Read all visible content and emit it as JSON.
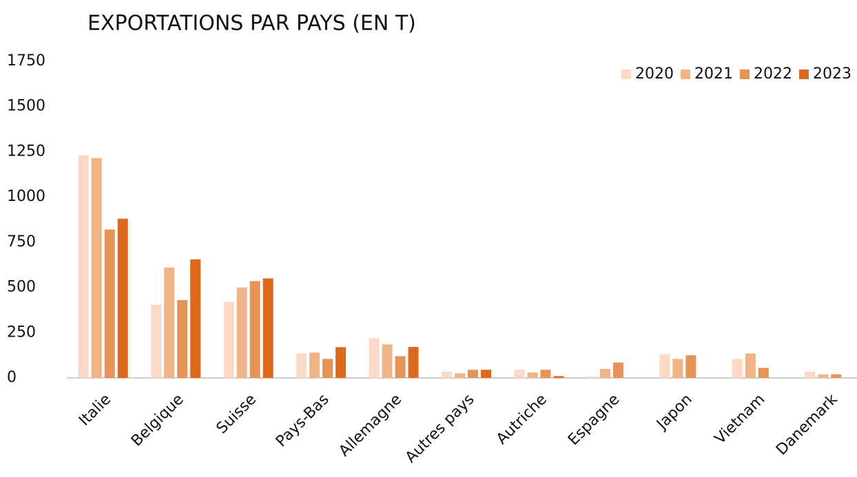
{
  "chart_data": {
    "type": "bar",
    "title": "EXPORTATIONS PAR PAYS (EN T)",
    "categories": [
      "Italie",
      "Belgique",
      "Suisse",
      "Pays-Bas",
      "Allemagne",
      "Autres pays",
      "Autriche",
      "Espagne",
      "Japon",
      "Vietnam",
      "Danemark"
    ],
    "series": [
      {
        "name": "2020",
        "color": "#fbd9c6",
        "values": [
          1230,
          405,
          420,
          135,
          220,
          35,
          45,
          8,
          130,
          105,
          35
        ]
      },
      {
        "name": "2021",
        "color": "#f0b388",
        "values": [
          1215,
          610,
          500,
          140,
          185,
          25,
          30,
          50,
          105,
          135,
          20
        ]
      },
      {
        "name": "2022",
        "color": "#e69358",
        "values": [
          820,
          430,
          535,
          105,
          120,
          45,
          45,
          85,
          125,
          55,
          20
        ]
      },
      {
        "name": "2023",
        "color": "#dd6a1c",
        "values": [
          880,
          655,
          550,
          170,
          171,
          45,
          10,
          null,
          null,
          null,
          null
        ]
      }
    ],
    "ylim": [
      0,
      1750
    ],
    "yticks": [
      0,
      250,
      500,
      750,
      1000,
      1250,
      1500,
      1750
    ],
    "grid": false,
    "legend": "top-right"
  }
}
